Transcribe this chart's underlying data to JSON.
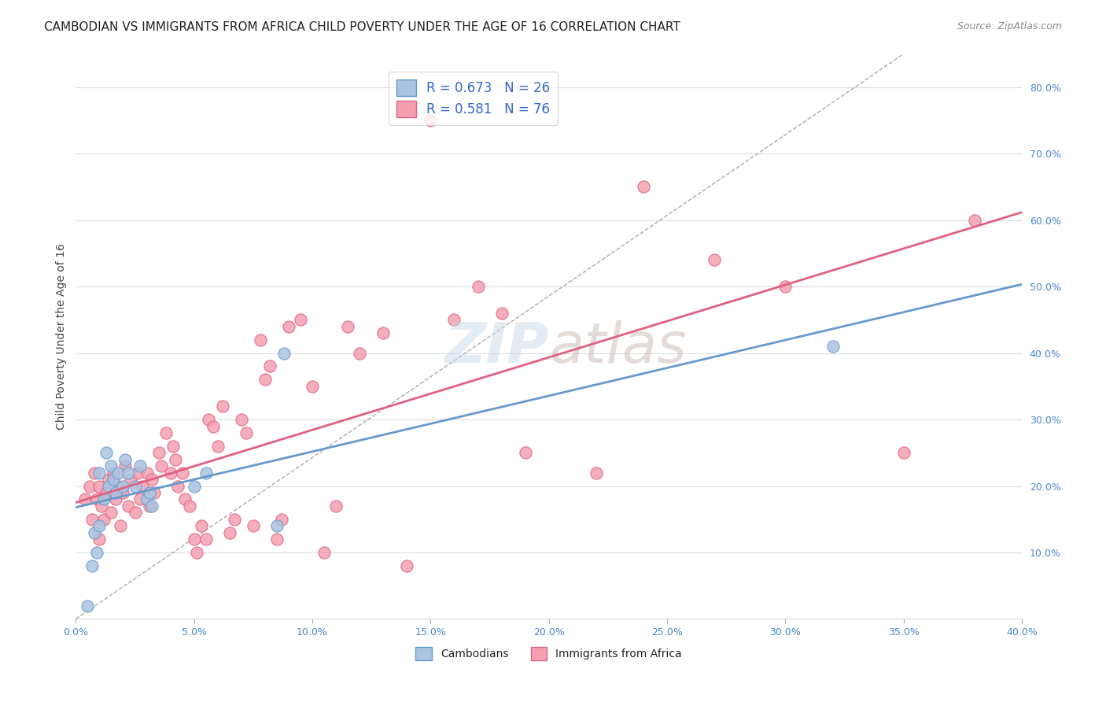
{
  "title": "CAMBODIAN VS IMMIGRANTS FROM AFRICA CHILD POVERTY UNDER THE AGE OF 16 CORRELATION CHART",
  "source": "Source: ZipAtlas.com",
  "ylabel": "Child Poverty Under the Age of 16",
  "xlabel": "",
  "xlim": [
    0.0,
    0.4
  ],
  "ylim": [
    0.0,
    0.85
  ],
  "xticks": [
    0.0,
    0.05,
    0.1,
    0.15,
    0.2,
    0.25,
    0.3,
    0.35,
    0.4
  ],
  "ytick_positions": [
    0.0,
    0.1,
    0.2,
    0.3,
    0.4,
    0.5,
    0.6,
    0.7,
    0.8
  ],
  "ytick_labels_right": [
    "",
    "10.0%",
    "20.0%",
    "30.0%",
    "40.0%",
    "50.0%",
    "60.0%",
    "70.0%",
    "80.0%"
  ],
  "cambodian_color": "#a8c4e0",
  "cambodian_edge": "#6699cc",
  "africa_color": "#f4a0b0",
  "africa_edge": "#e06080",
  "cambodian_R": 0.673,
  "cambodian_N": 26,
  "africa_R": 0.581,
  "africa_N": 76,
  "legend_R_color": "#3366cc",
  "legend_N_color": "#3366cc",
  "watermark": "ZIPatlas",
  "cambodian_scatter_x": [
    0.005,
    0.007,
    0.008,
    0.009,
    0.01,
    0.01,
    0.012,
    0.013,
    0.014,
    0.015,
    0.016,
    0.017,
    0.018,
    0.02,
    0.021,
    0.022,
    0.025,
    0.027,
    0.03,
    0.031,
    0.032,
    0.05,
    0.055,
    0.085,
    0.088,
    0.32
  ],
  "cambodian_scatter_y": [
    0.02,
    0.08,
    0.13,
    0.1,
    0.14,
    0.22,
    0.18,
    0.25,
    0.2,
    0.23,
    0.21,
    0.19,
    0.22,
    0.2,
    0.24,
    0.22,
    0.2,
    0.23,
    0.18,
    0.19,
    0.17,
    0.2,
    0.22,
    0.14,
    0.4,
    0.41
  ],
  "africa_scatter_x": [
    0.004,
    0.006,
    0.007,
    0.008,
    0.009,
    0.01,
    0.01,
    0.011,
    0.012,
    0.013,
    0.014,
    0.015,
    0.016,
    0.017,
    0.018,
    0.019,
    0.02,
    0.021,
    0.022,
    0.023,
    0.025,
    0.026,
    0.027,
    0.028,
    0.03,
    0.031,
    0.032,
    0.033,
    0.035,
    0.036,
    0.038,
    0.04,
    0.041,
    0.042,
    0.043,
    0.045,
    0.046,
    0.048,
    0.05,
    0.051,
    0.053,
    0.055,
    0.056,
    0.058,
    0.06,
    0.062,
    0.065,
    0.067,
    0.07,
    0.072,
    0.075,
    0.078,
    0.08,
    0.082,
    0.085,
    0.087,
    0.09,
    0.095,
    0.1,
    0.105,
    0.11,
    0.115,
    0.12,
    0.13,
    0.14,
    0.15,
    0.16,
    0.17,
    0.18,
    0.19,
    0.22,
    0.24,
    0.27,
    0.3,
    0.35,
    0.38
  ],
  "africa_scatter_y": [
    0.18,
    0.2,
    0.15,
    0.22,
    0.18,
    0.2,
    0.12,
    0.17,
    0.15,
    0.19,
    0.21,
    0.16,
    0.22,
    0.18,
    0.2,
    0.14,
    0.19,
    0.23,
    0.17,
    0.21,
    0.16,
    0.22,
    0.18,
    0.2,
    0.22,
    0.17,
    0.21,
    0.19,
    0.25,
    0.23,
    0.28,
    0.22,
    0.26,
    0.24,
    0.2,
    0.22,
    0.18,
    0.17,
    0.12,
    0.1,
    0.14,
    0.12,
    0.3,
    0.29,
    0.26,
    0.32,
    0.13,
    0.15,
    0.3,
    0.28,
    0.14,
    0.42,
    0.36,
    0.38,
    0.12,
    0.15,
    0.44,
    0.45,
    0.35,
    0.1,
    0.17,
    0.44,
    0.4,
    0.43,
    0.08,
    0.75,
    0.45,
    0.5,
    0.46,
    0.25,
    0.22,
    0.65,
    0.54,
    0.5,
    0.25,
    0.6
  ],
  "background_color": "#ffffff",
  "grid_color": "#d8dce0",
  "title_fontsize": 11,
  "axis_label_fontsize": 10,
  "tick_fontsize": 9,
  "tick_color": "#4488cc"
}
